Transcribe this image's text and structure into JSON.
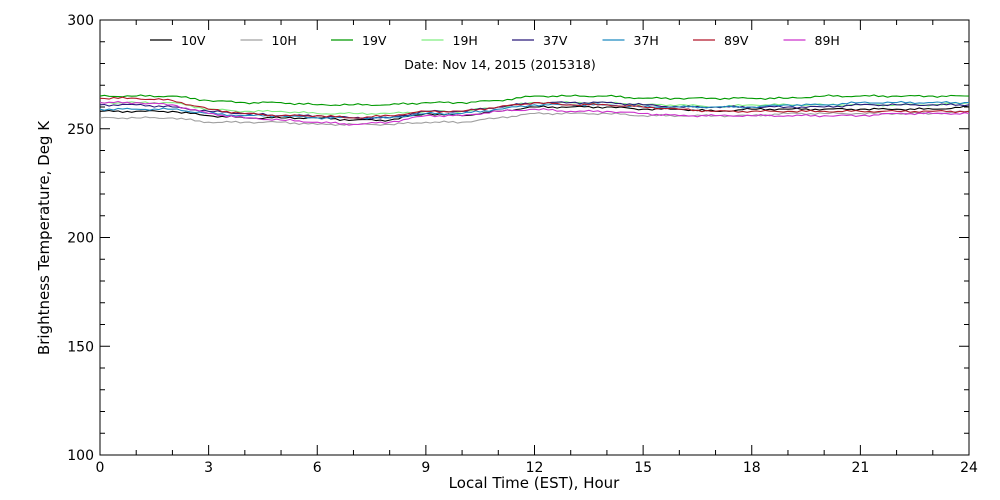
{
  "chart_data": {
    "type": "line",
    "title": "",
    "subtitle": "Date: Nov 14, 2015 (2015318)",
    "xlabel": "Local Time (EST), Hour",
    "ylabel": "Brightness Temperature, Deg K",
    "xlim": [
      0,
      24
    ],
    "ylim": [
      100,
      300
    ],
    "xticks": [
      0,
      3,
      6,
      9,
      12,
      15,
      18,
      21,
      24
    ],
    "yticks": [
      100,
      150,
      200,
      250,
      300
    ],
    "grid": false,
    "legend_placement": "top",
    "x": [
      0,
      1,
      2,
      3,
      4,
      5,
      6,
      7,
      8,
      9,
      10,
      11,
      12,
      13,
      14,
      15,
      16,
      17,
      18,
      19,
      20,
      21,
      22,
      23,
      24
    ],
    "series": [
      {
        "name": "10V",
        "color": "#000000",
        "values": [
          258,
          258,
          258,
          256,
          255,
          255,
          255,
          254,
          254,
          257,
          256,
          258,
          260,
          260,
          260,
          259,
          259,
          258,
          259,
          259,
          259,
          259,
          259,
          259,
          260
        ]
      },
      {
        "name": "10H",
        "color": "#a0a0a0",
        "values": [
          255,
          255,
          255,
          253,
          253,
          253,
          252,
          252,
          252,
          253,
          253,
          255,
          257,
          257,
          257,
          256,
          256,
          256,
          256,
          257,
          257,
          257,
          257,
          257,
          258
        ]
      },
      {
        "name": "19V",
        "color": "#009900",
        "values": [
          265,
          265,
          265,
          263,
          262,
          262,
          261,
          261,
          261,
          262,
          262,
          263,
          265,
          265,
          265,
          264,
          264,
          264,
          264,
          264,
          265,
          265,
          265,
          265,
          265
        ]
      },
      {
        "name": "19H",
        "color": "#80ee80",
        "values": [
          262,
          262,
          262,
          259,
          258,
          258,
          257,
          257,
          257,
          258,
          258,
          260,
          262,
          262,
          262,
          261,
          261,
          260,
          261,
          261,
          261,
          261,
          261,
          261,
          262
        ]
      },
      {
        "name": "37V",
        "color": "#2a1a7a",
        "values": [
          261,
          261,
          260,
          258,
          257,
          256,
          256,
          255,
          255,
          258,
          258,
          260,
          262,
          262,
          262,
          261,
          260,
          260,
          260,
          260,
          260,
          261,
          261,
          261,
          261
        ]
      },
      {
        "name": "37H",
        "color": "#1f8ac0",
        "values": [
          259,
          259,
          259,
          257,
          256,
          256,
          255,
          255,
          255,
          257,
          257,
          259,
          261,
          261,
          261,
          260,
          260,
          260,
          260,
          261,
          261,
          262,
          262,
          262,
          262
        ]
      },
      {
        "name": "89V",
        "color": "#b2182b",
        "values": [
          264,
          264,
          263,
          259,
          257,
          256,
          256,
          255,
          256,
          258,
          258,
          260,
          262,
          261,
          261,
          260,
          259,
          258,
          258,
          258,
          258,
          258,
          258,
          258,
          258
        ]
      },
      {
        "name": "89H",
        "color": "#cc33cc",
        "values": [
          262,
          262,
          261,
          257,
          255,
          254,
          253,
          252,
          253,
          256,
          256,
          258,
          259,
          258,
          258,
          257,
          256,
          256,
          256,
          256,
          256,
          256,
          257,
          257,
          257
        ]
      }
    ]
  }
}
